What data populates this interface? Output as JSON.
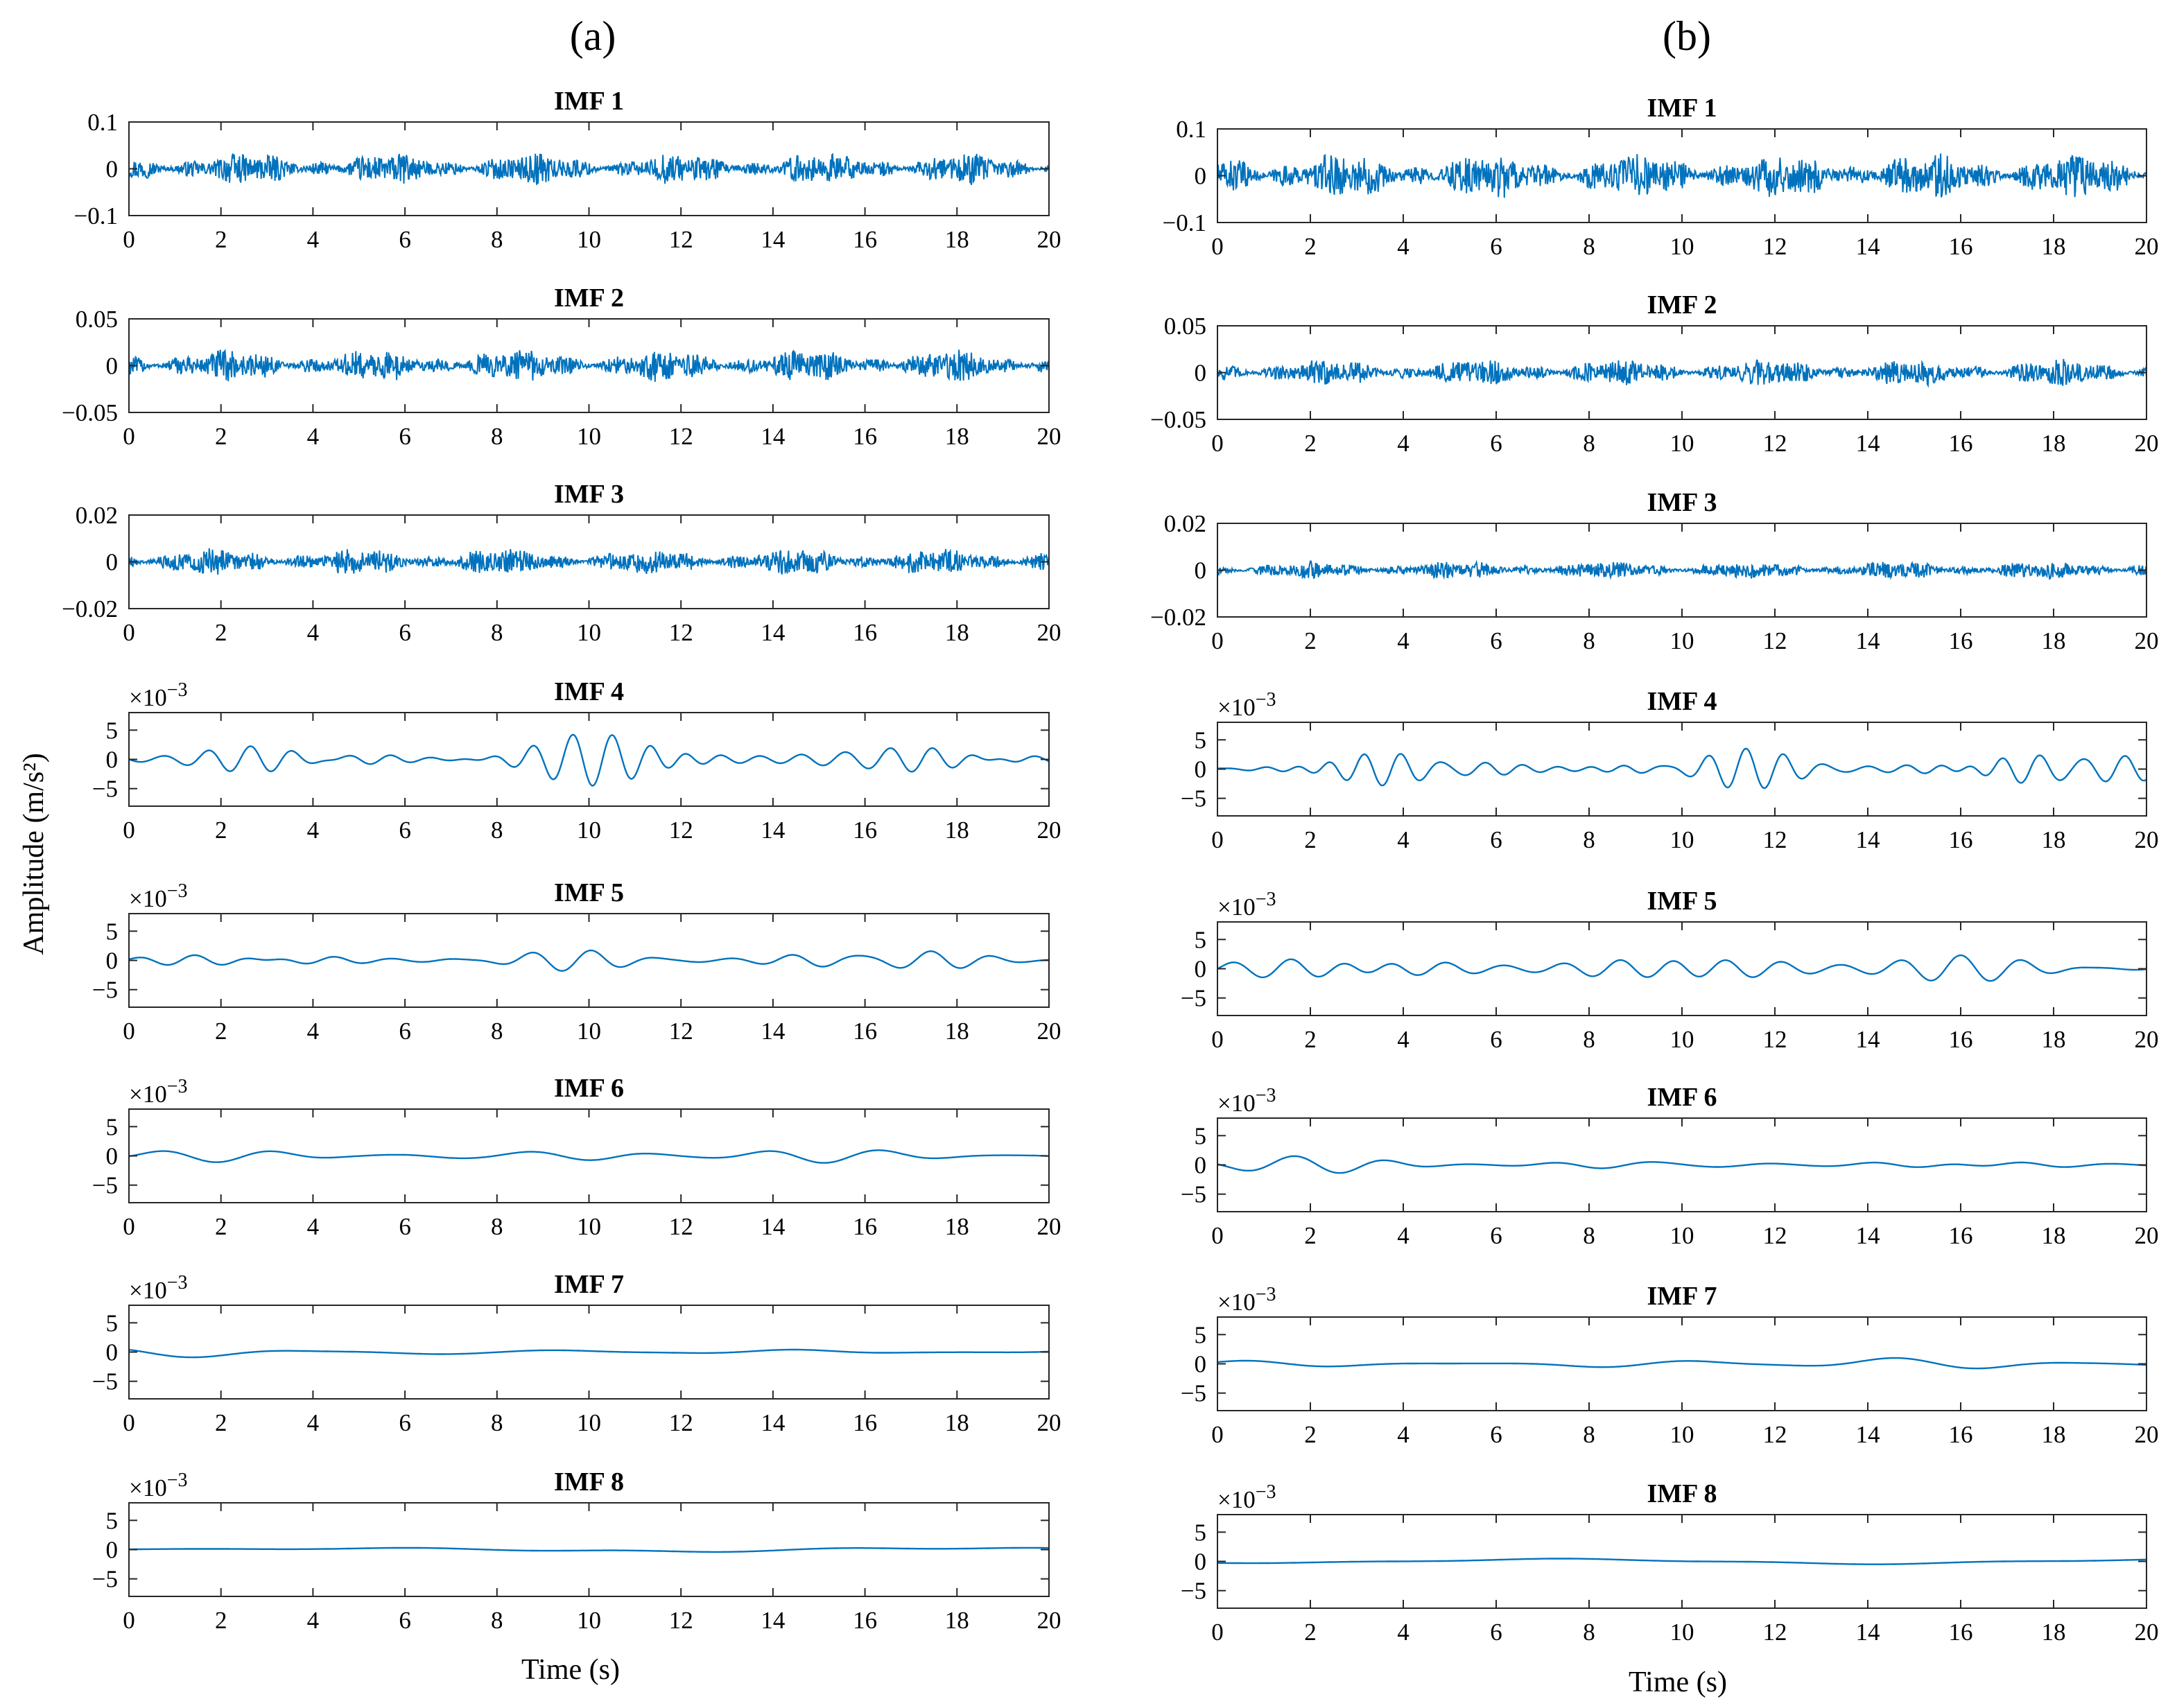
{
  "figure": {
    "y_label": "Amplitude (m/s²)",
    "x_label": "Time (s)",
    "line_color": "#0072BD"
  },
  "chart_data": [
    {
      "panel": "(a)",
      "type": "line",
      "xlabel": "Time (s)",
      "ylabel": "Amplitude (m/s²)",
      "xlim": [
        0,
        20
      ],
      "xticks": [
        "0",
        "2",
        "4",
        "6",
        "8",
        "10",
        "12",
        "14",
        "16",
        "18",
        "20"
      ],
      "subplots": [
        {
          "title": "IMF 1",
          "ylim": [
            -0.1,
            0.1
          ],
          "yticks": [
            "0.1",
            "0",
            "-0.1"
          ],
          "exponent": "",
          "peak_amplitude": 0.035,
          "character": "broadband high-frequency noise"
        },
        {
          "title": "IMF 2",
          "ylim": [
            -0.05,
            0.05
          ],
          "yticks": [
            "0.05",
            "0",
            "-0.05"
          ],
          "exponent": "",
          "peak_amplitude": 0.018,
          "character": "high-frequency bursts"
        },
        {
          "title": "IMF 3",
          "ylim": [
            -0.02,
            0.02
          ],
          "yticks": [
            "0.02",
            "0",
            "-0.02"
          ],
          "exponent": "",
          "peak_amplitude": 0.006,
          "character": "transient spikes"
        },
        {
          "title": "IMF 4",
          "ylim": [
            -8,
            8
          ],
          "yticks": [
            "5",
            "0",
            "-5"
          ],
          "exponent": "×10-3",
          "peak_amplitude": 4.5,
          "character": "oscillatory"
        },
        {
          "title": "IMF 5",
          "ylim": [
            -8,
            8
          ],
          "yticks": [
            "5",
            "0",
            "-5"
          ],
          "exponent": "×10-3",
          "peak_amplitude": 1.8,
          "character": "oscillatory"
        },
        {
          "title": "IMF 6",
          "ylim": [
            -8,
            8
          ],
          "yticks": [
            "5",
            "0",
            "-5"
          ],
          "exponent": "×10-3",
          "peak_amplitude": 1.2,
          "character": "slow oscillation"
        },
        {
          "title": "IMF 7",
          "ylim": [
            -8,
            8
          ],
          "yticks": [
            "5",
            "0",
            "-5"
          ],
          "exponent": "×10-3",
          "peak_amplitude": 0.9,
          "character": "slow trend"
        },
        {
          "title": "IMF 8",
          "ylim": [
            -8,
            8
          ],
          "yticks": [
            "5",
            "0",
            "-5"
          ],
          "exponent": "×10-3",
          "peak_amplitude": 0.4,
          "character": "residual trend"
        }
      ]
    },
    {
      "panel": "(b)",
      "type": "line",
      "xlabel": "Time (s)",
      "ylabel": "Amplitude (m/s²)",
      "xlim": [
        0,
        20
      ],
      "xticks": [
        "0",
        "2",
        "4",
        "6",
        "8",
        "10",
        "12",
        "14",
        "16",
        "18",
        "20"
      ],
      "subplots": [
        {
          "title": "IMF 1",
          "ylim": [
            -0.1,
            0.1
          ],
          "yticks": [
            "0.1",
            "0",
            "-0.1"
          ],
          "exponent": "",
          "peak_amplitude": 0.05,
          "character": "broadband high-frequency noise"
        },
        {
          "title": "IMF 2",
          "ylim": [
            -0.05,
            0.05
          ],
          "yticks": [
            "0.05",
            "0",
            "-0.05"
          ],
          "exponent": "",
          "peak_amplitude": 0.015,
          "character": "high-frequency noise"
        },
        {
          "title": "IMF 3",
          "ylim": [
            -0.02,
            0.02
          ],
          "yticks": [
            "0.02",
            "0",
            "-0.02"
          ],
          "exponent": "",
          "peak_amplitude": 0.004,
          "character": "high-frequency noise"
        },
        {
          "title": "IMF 4",
          "ylim": [
            -8,
            8
          ],
          "yticks": [
            "5",
            "0",
            "-5"
          ],
          "exponent": "×10-3",
          "peak_amplitude": 3.5,
          "character": "oscillatory"
        },
        {
          "title": "IMF 5",
          "ylim": [
            -8,
            8
          ],
          "yticks": [
            "5",
            "0",
            "-5"
          ],
          "exponent": "×10-3",
          "peak_amplitude": 2.3,
          "character": "oscillatory"
        },
        {
          "title": "IMF 6",
          "ylim": [
            -8,
            8
          ],
          "yticks": [
            "5",
            "0",
            "-5"
          ],
          "exponent": "×10-3",
          "peak_amplitude": 1.5,
          "character": "slow oscillation"
        },
        {
          "title": "IMF 7",
          "ylim": [
            -8,
            8
          ],
          "yticks": [
            "5",
            "0",
            "-5"
          ],
          "exponent": "×10-3",
          "peak_amplitude": 1.0,
          "character": "slow trend"
        },
        {
          "title": "IMF 8",
          "ylim": [
            -8,
            8
          ],
          "yticks": [
            "5",
            "0",
            "-5"
          ],
          "exponent": "×10-3",
          "peak_amplitude": 0.5,
          "character": "residual trend"
        }
      ]
    }
  ]
}
